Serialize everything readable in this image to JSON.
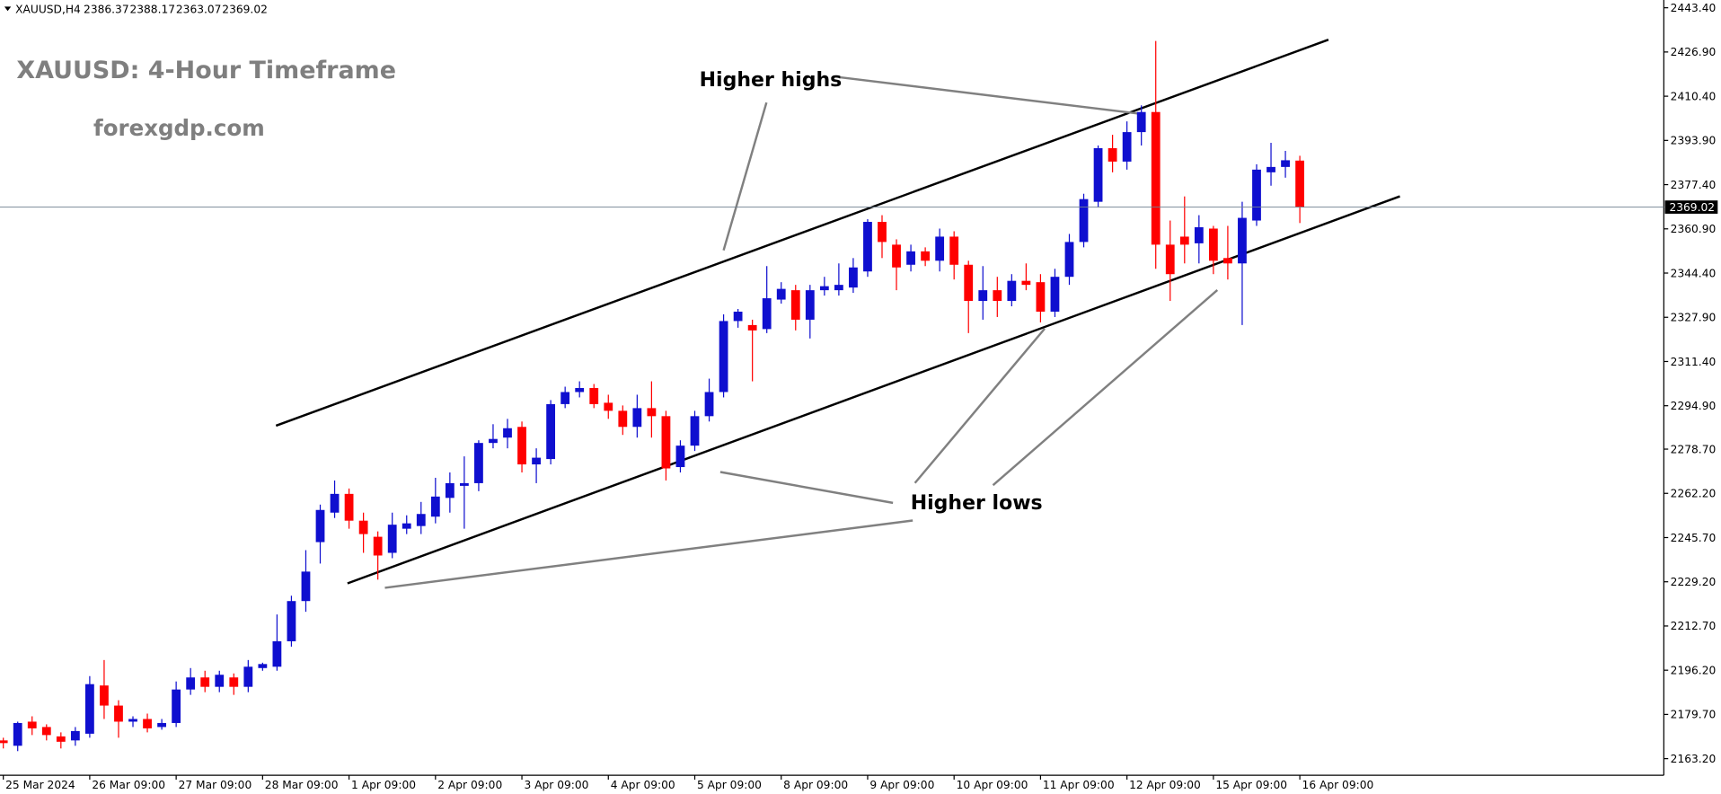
{
  "chart_data": {
    "type": "candlestick",
    "symbol": "XAUUSD,H4",
    "title": "XAUUSD: 4-Hour Timeframe",
    "subtitle": "forexgdp.com",
    "annotations": [
      "Higher highs",
      "Higher lows"
    ],
    "up_color": "#0f0fcf",
    "down_color": "#ff0000",
    "grid": false,
    "categories": [
      "25 Mar 2024",
      null,
      null,
      null,
      null,
      null,
      "26 Mar 09:00",
      null,
      null,
      null,
      null,
      null,
      "27 Mar 09:00",
      null,
      null,
      null,
      null,
      null,
      "28 Mar 09:00",
      null,
      null,
      null,
      null,
      null,
      "1 Apr 09:00",
      null,
      null,
      null,
      null,
      null,
      "2 Apr 09:00",
      null,
      null,
      null,
      null,
      null,
      "3 Apr 09:00",
      null,
      null,
      null,
      null,
      null,
      "4 Apr 09:00",
      null,
      null,
      null,
      null,
      null,
      "5 Apr 09:00",
      null,
      null,
      null,
      null,
      null,
      "8 Apr 09:00",
      null,
      null,
      null,
      null,
      null,
      "9 Apr 09:00",
      null,
      null,
      null,
      null,
      null,
      "10 Apr 09:00",
      null,
      null,
      null,
      null,
      null,
      "11 Apr 09:00",
      null,
      null,
      null,
      null,
      null,
      "12 Apr 09:00",
      null,
      null,
      null,
      null,
      null,
      "15 Apr 09:00",
      null,
      null,
      null,
      null,
      null,
      "16 Apr 09:00"
    ],
    "open": [
      2170,
      2168,
      2177,
      2175,
      2171.5,
      2170,
      2172.5,
      2190.5,
      2183,
      2177,
      2178,
      2175,
      2176.5,
      2189,
      2193.5,
      2190,
      2193.5,
      2190,
      2197,
      2197.5,
      2207,
      2222,
      2244,
      2255,
      2262,
      2252,
      2246,
      2240,
      2249,
      2250,
      2253.5,
      2260.5,
      2265,
      2266,
      2281,
      2283,
      2287,
      2273,
      2275,
      2295.5,
      2300,
      2301.5,
      2296,
      2293,
      2287,
      2294,
      2291,
      2272,
      2280,
      2291,
      2300,
      2326.5,
      2325,
      2323.5,
      2334.5,
      2338,
      2327,
      2338,
      2338,
      2339,
      2345,
      2363.5,
      2355,
      2347.5,
      2352.5,
      2349,
      2358,
      2347.5,
      2334,
      2338,
      2334,
      2341.5,
      2341,
      2330,
      2343,
      2356,
      2371,
      2391,
      2386,
      2397,
      2404.5,
      2355,
      2358,
      2355.5,
      2361,
      2350,
      2348,
      2364,
      2382,
      2384,
      2386.37
    ],
    "high": [
      2171,
      2177,
      2179,
      2176,
      2173,
      2175,
      2194,
      2200,
      2185,
      2179,
      2180,
      2178,
      2192,
      2197,
      2196,
      2196,
      2195,
      2200,
      2199,
      2217,
      2224,
      2241,
      2258,
      2267,
      2264,
      2255,
      2248,
      2255,
      2254,
      2259,
      2268,
      2270,
      2276,
      2282,
      2288,
      2290,
      2289,
      2279,
      2297,
      2302,
      2304,
      2303,
      2299,
      2295,
      2299,
      2304,
      2293,
      2282,
      2293,
      2305,
      2329,
      2331,
      2327,
      2347,
      2341,
      2340,
      2340,
      2343,
      2348,
      2350,
      2364.5,
      2366,
      2357,
      2355,
      2354,
      2361,
      2360,
      2349,
      2347,
      2343,
      2344,
      2348,
      2344,
      2346,
      2359,
      2374,
      2392,
      2396,
      2401,
      2407,
      2431,
      2364,
      2373,
      2366,
      2362,
      2362,
      2371,
      2385,
      2393,
      2390,
      2388.17
    ],
    "low": [
      2167,
      2166,
      2172,
      2170,
      2167,
      2168,
      2171,
      2178,
      2171,
      2175,
      2173,
      2174,
      2175,
      2187,
      2188,
      2188,
      2187,
      2188,
      2196,
      2196,
      2205,
      2218,
      2236,
      2253,
      2249,
      2240,
      2230,
      2238,
      2247,
      2247,
      2251,
      2255,
      2249,
      2263,
      2279,
      2279,
      2270,
      2266,
      2273,
      2294,
      2298,
      2294,
      2290,
      2284,
      2283,
      2283,
      2267,
      2270,
      2278,
      2289,
      2298,
      2324,
      2304,
      2322,
      2333,
      2323,
      2320,
      2336,
      2336,
      2337,
      2343,
      2350,
      2338,
      2345,
      2347,
      2345,
      2342,
      2322,
      2327,
      2328,
      2332,
      2338,
      2326,
      2328,
      2340,
      2354,
      2369,
      2382,
      2383,
      2392,
      2346,
      2334,
      2348,
      2348,
      2344,
      2342,
      2325,
      2362,
      2377,
      2380,
      2363.07
    ],
    "close": [
      2169,
      2176.5,
      2174.5,
      2172,
      2169.5,
      2173.5,
      2191,
      2183,
      2177,
      2178,
      2174.5,
      2176.5,
      2189,
      2193.5,
      2190,
      2194.5,
      2190,
      2197.5,
      2198.5,
      2207,
      2222,
      2233,
      2256,
      2262,
      2252,
      2247,
      2239,
      2250.5,
      2251,
      2254.5,
      2261,
      2266,
      2266,
      2281,
      2282.5,
      2286.5,
      2273,
      2275.5,
      2295.5,
      2300,
      2301.5,
      2295.5,
      2293,
      2287,
      2294,
      2291,
      2271.5,
      2280,
      2291,
      2300,
      2326.5,
      2330,
      2323,
      2335,
      2338.5,
      2327,
      2338,
      2339.5,
      2340,
      2346.5,
      2363.5,
      2356,
      2346.5,
      2352.5,
      2349,
      2358,
      2347.5,
      2334,
      2338,
      2334,
      2341.5,
      2340,
      2330,
      2343,
      2356,
      2372,
      2391,
      2386,
      2397,
      2404.5,
      2355,
      2344,
      2355,
      2361.5,
      2349,
      2348,
      2365,
      2383,
      2384,
      2386.5,
      2369.02
    ],
    "ylim": [
      2157.0,
      2446.3
    ],
    "yticks": [
      {
        "value": 2163.2,
        "label": "2163.20"
      },
      {
        "value": 2179.7,
        "label": "2179.70"
      },
      {
        "value": 2196.2,
        "label": "2196.20"
      },
      {
        "value": 2212.7,
        "label": "2212.70"
      },
      {
        "value": 2229.2,
        "label": "2229.20"
      },
      {
        "value": 2245.7,
        "label": "2245.70"
      },
      {
        "value": 2262.2,
        "label": "2262.20"
      },
      {
        "value": 2278.7,
        "label": "2278.70"
      },
      {
        "value": 2294.9,
        "label": "2294.90"
      },
      {
        "value": 2311.4,
        "label": "2311.40"
      },
      {
        "value": 2327.9,
        "label": "2327.90"
      },
      {
        "value": 2344.4,
        "label": "2344.40"
      },
      {
        "value": 2360.9,
        "label": "2360.90"
      },
      {
        "value": 2377.4,
        "label": "2377.40"
      },
      {
        "value": 2393.9,
        "label": "2393.90"
      },
      {
        "value": 2410.4,
        "label": "2410.40"
      },
      {
        "value": 2426.9,
        "label": "2426.90"
      },
      {
        "value": 2443.4,
        "label": "2443.40"
      }
    ]
  }
}
